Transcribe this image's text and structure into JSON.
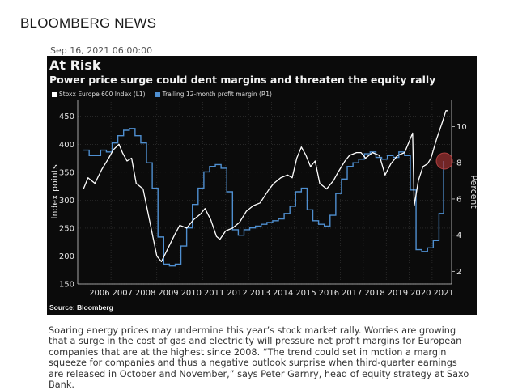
{
  "header": {
    "masthead": "BLOOMBERG NEWS",
    "timestamp": "Sep 16, 2021 06:00:00"
  },
  "chart_data": {
    "type": "line",
    "title": "At Risk",
    "subtitle": "Power price surge could dent margins and threaten the equity rally",
    "source": "Source: Bloomberg",
    "x_ticks": [
      "2006",
      "2007",
      "2008",
      "2009",
      "2010",
      "2011",
      "2012",
      "2013",
      "2014",
      "2015",
      "2016",
      "2017",
      "2018",
      "2019",
      "2020",
      "2021"
    ],
    "y_left": {
      "label": "Index points",
      "ticks": [
        150,
        200,
        250,
        300,
        350,
        400,
        450
      ],
      "ylim": [
        150,
        480
      ]
    },
    "y_right": {
      "label": "Percent",
      "ticks": [
        2,
        4,
        6,
        8,
        10
      ],
      "ylim": [
        1.3,
        11.5
      ]
    },
    "grid": true,
    "legend_position": "top-left",
    "series": [
      {
        "name": "Stoxx Europe 600 Index (L1)",
        "axis": "left",
        "color": "#ffffff",
        "x": [
          2005.8,
          2006.0,
          2006.3,
          2006.6,
          2006.9,
          2007.1,
          2007.35,
          2007.5,
          2007.7,
          2007.9,
          2008.1,
          2008.4,
          2008.6,
          2008.8,
          2009.0,
          2009.2,
          2009.5,
          2009.8,
          2010.0,
          2010.3,
          2010.6,
          2010.9,
          2011.1,
          2011.35,
          2011.6,
          2011.75,
          2012.0,
          2012.3,
          2012.6,
          2012.9,
          2013.2,
          2013.5,
          2013.9,
          2014.1,
          2014.4,
          2014.7,
          2014.9,
          2015.1,
          2015.3,
          2015.5,
          2015.7,
          2015.9,
          2016.1,
          2016.4,
          2016.7,
          2016.9,
          2017.2,
          2017.4,
          2017.7,
          2017.9,
          2018.1,
          2018.4,
          2018.7,
          2018.95,
          2019.2,
          2019.5,
          2019.8,
          2020.0,
          2020.15,
          2020.22,
          2020.4,
          2020.6,
          2020.8,
          2020.95,
          2021.2,
          2021.45,
          2021.6,
          2021.7
        ],
        "values": [
          320,
          340,
          330,
          355,
          375,
          390,
          400,
          385,
          370,
          375,
          330,
          320,
          280,
          240,
          200,
          190,
          215,
          240,
          255,
          250,
          265,
          275,
          285,
          265,
          235,
          230,
          245,
          250,
          260,
          280,
          290,
          295,
          320,
          330,
          340,
          345,
          340,
          375,
          395,
          380,
          360,
          370,
          330,
          320,
          335,
          350,
          370,
          380,
          385,
          385,
          375,
          385,
          380,
          345,
          365,
          380,
          385,
          405,
          420,
          290,
          335,
          360,
          365,
          375,
          410,
          440,
          460,
          460
        ]
      },
      {
        "name": "Trailing 12-month profit margin (R1)",
        "axis": "right",
        "color": "#4f8fd0",
        "x": [
          2005.8,
          2006.05,
          2006.3,
          2006.55,
          2006.8,
          2007.05,
          2007.3,
          2007.55,
          2007.8,
          2008.05,
          2008.3,
          2008.55,
          2008.8,
          2009.05,
          2009.3,
          2009.55,
          2009.8,
          2010.05,
          2010.3,
          2010.55,
          2010.8,
          2011.05,
          2011.3,
          2011.55,
          2011.8,
          2012.05,
          2012.3,
          2012.55,
          2012.8,
          2013.05,
          2013.3,
          2013.55,
          2013.8,
          2014.05,
          2014.3,
          2014.55,
          2014.8,
          2015.05,
          2015.3,
          2015.55,
          2015.8,
          2016.05,
          2016.3,
          2016.55,
          2016.8,
          2017.05,
          2017.3,
          2017.55,
          2017.8,
          2018.05,
          2018.3,
          2018.55,
          2018.8,
          2019.05,
          2019.3,
          2019.55,
          2019.8,
          2020.05,
          2020.3,
          2020.55,
          2020.8,
          2021.05,
          2021.3,
          2021.5
        ],
        "values": [
          8.7,
          8.4,
          8.4,
          8.7,
          8.6,
          9.1,
          9.5,
          9.8,
          9.9,
          9.5,
          9.1,
          8.0,
          6.6,
          3.9,
          2.4,
          2.3,
          2.4,
          3.4,
          4.4,
          5.7,
          6.6,
          7.5,
          7.8,
          7.9,
          7.7,
          6.4,
          4.3,
          4.0,
          4.3,
          4.4,
          4.5,
          4.6,
          4.7,
          4.8,
          4.9,
          5.2,
          5.6,
          6.4,
          6.6,
          5.4,
          4.8,
          4.6,
          4.5,
          5.1,
          6.3,
          7.1,
          7.8,
          8.0,
          8.2,
          8.5,
          8.6,
          8.3,
          8.2,
          8.4,
          8.3,
          8.6,
          8.4,
          6.5,
          3.2,
          3.1,
          3.3,
          3.7,
          5.2,
          8.1
        ]
      }
    ],
    "annotations": [
      "circle highlighting latest margin near 8.4% in 2021"
    ]
  },
  "caption": "Soaring energy prices may undermine this year’s stock market rally. Worries are growing that a surge in the cost of gas and electricity will pressure net profit margins for European companies that are at the highest since 2008. “The trend could set in motion a margin squeeze for companies and thus a negative outlook surprise when third-quarter earnings are released in October and November,” says Peter Garnry, head of equity strategy at Saxo Bank."
}
